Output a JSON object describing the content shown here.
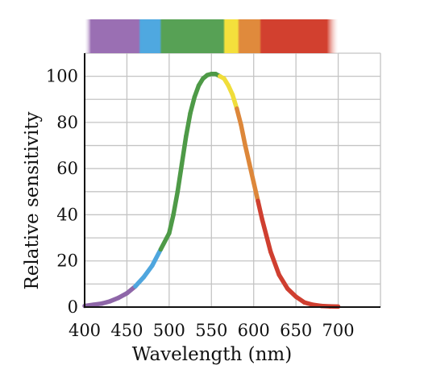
{
  "chart_data": {
    "type": "line",
    "title": "",
    "xlabel": "Wavelength (nm)",
    "ylabel": "Relative sensitivity",
    "xlim": [
      400,
      750
    ],
    "ylim": [
      0,
      110
    ],
    "xticks": [
      400,
      450,
      500,
      550,
      600,
      650,
      700
    ],
    "yticks": [
      0,
      20,
      40,
      60,
      80,
      100
    ],
    "x_tick_labels": [
      "400",
      "450",
      "500",
      "550",
      "600",
      "650",
      "700"
    ],
    "y_tick_labels": [
      "0",
      "20",
      "40",
      "60",
      "80",
      "100"
    ],
    "grid": true,
    "series": [
      {
        "x": [
          400,
          410,
          420,
          430,
          440,
          450,
          460,
          470,
          480,
          490,
          500,
          505,
          510,
          515,
          520,
          525,
          530,
          535,
          540,
          545,
          550,
          555,
          560,
          565,
          570,
          575,
          580,
          585,
          590,
          595,
          600,
          605,
          610,
          615,
          620,
          630,
          640,
          650,
          660,
          670,
          680,
          690,
          700
        ],
        "values": [
          0.5,
          1,
          1.5,
          2.5,
          4,
          6,
          9,
          13,
          18,
          25,
          32,
          40,
          50,
          62,
          74,
          84,
          91,
          96,
          99,
          100.5,
          101,
          101,
          100,
          99,
          96,
          92,
          86,
          79,
          70,
          62,
          54,
          46,
          38,
          31,
          24,
          14,
          8,
          4.5,
          2,
          1,
          0.5,
          0.3,
          0.2
        ]
      }
    ],
    "spectrum_band": {
      "range": [
        400,
        700
      ],
      "segments": [
        {
          "from": 400,
          "to": 465,
          "color": "#9a6fb3"
        },
        {
          "from": 465,
          "to": 490,
          "color": "#4fa8e0"
        },
        {
          "from": 490,
          "to": 565,
          "color": "#57a155"
        },
        {
          "from": 565,
          "to": 582,
          "color": "#f4e03c"
        },
        {
          "from": 582,
          "to": 608,
          "color": "#e08a3c"
        },
        {
          "from": 608,
          "to": 700,
          "color": "#d2402f"
        }
      ]
    },
    "curve_colors": [
      {
        "upto": 462,
        "color": "#8e66a8"
      },
      {
        "upto": 492,
        "color": "#4fa6de"
      },
      {
        "upto": 558,
        "color": "#4e9a47"
      },
      {
        "upto": 580,
        "color": "#f0dd3a"
      },
      {
        "upto": 606,
        "color": "#dd873a"
      },
      {
        "upto": 700,
        "color": "#cf3f30"
      }
    ]
  }
}
